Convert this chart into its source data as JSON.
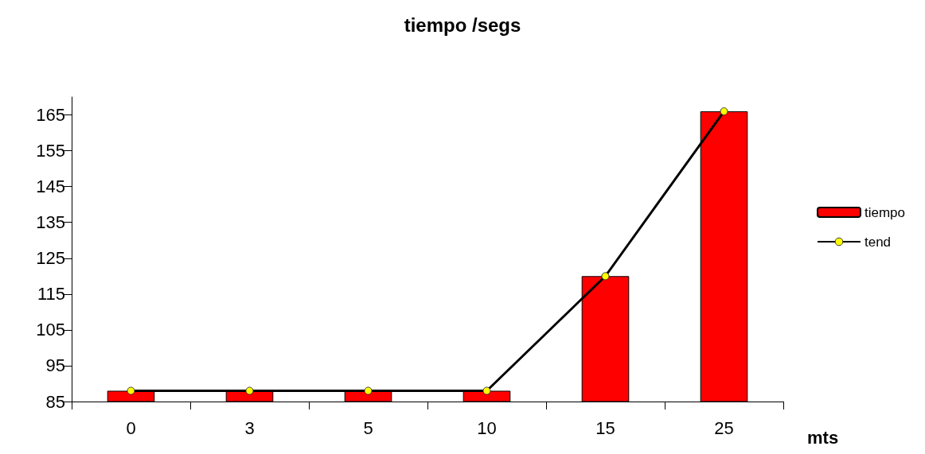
{
  "chart_data": {
    "type": "bar",
    "title": "tiempo /segs",
    "xlabel": "mts",
    "categories": [
      "0",
      "3",
      "5",
      "10",
      "15",
      "25"
    ],
    "series": [
      {
        "name": "tiempo",
        "color": "#ff0000",
        "values": [
          88,
          88,
          88,
          88,
          120,
          166
        ]
      },
      {
        "name": "tend",
        "type": "line",
        "color": "#000000",
        "values": [
          88,
          88,
          88,
          88,
          120,
          166
        ]
      }
    ],
    "ylim": [
      85,
      170
    ],
    "yticks": [
      85,
      95,
      105,
      115,
      125,
      135,
      145,
      155,
      165
    ],
    "grid": false,
    "legend": "right",
    "marker": "circle",
    "line_style": "solid"
  }
}
